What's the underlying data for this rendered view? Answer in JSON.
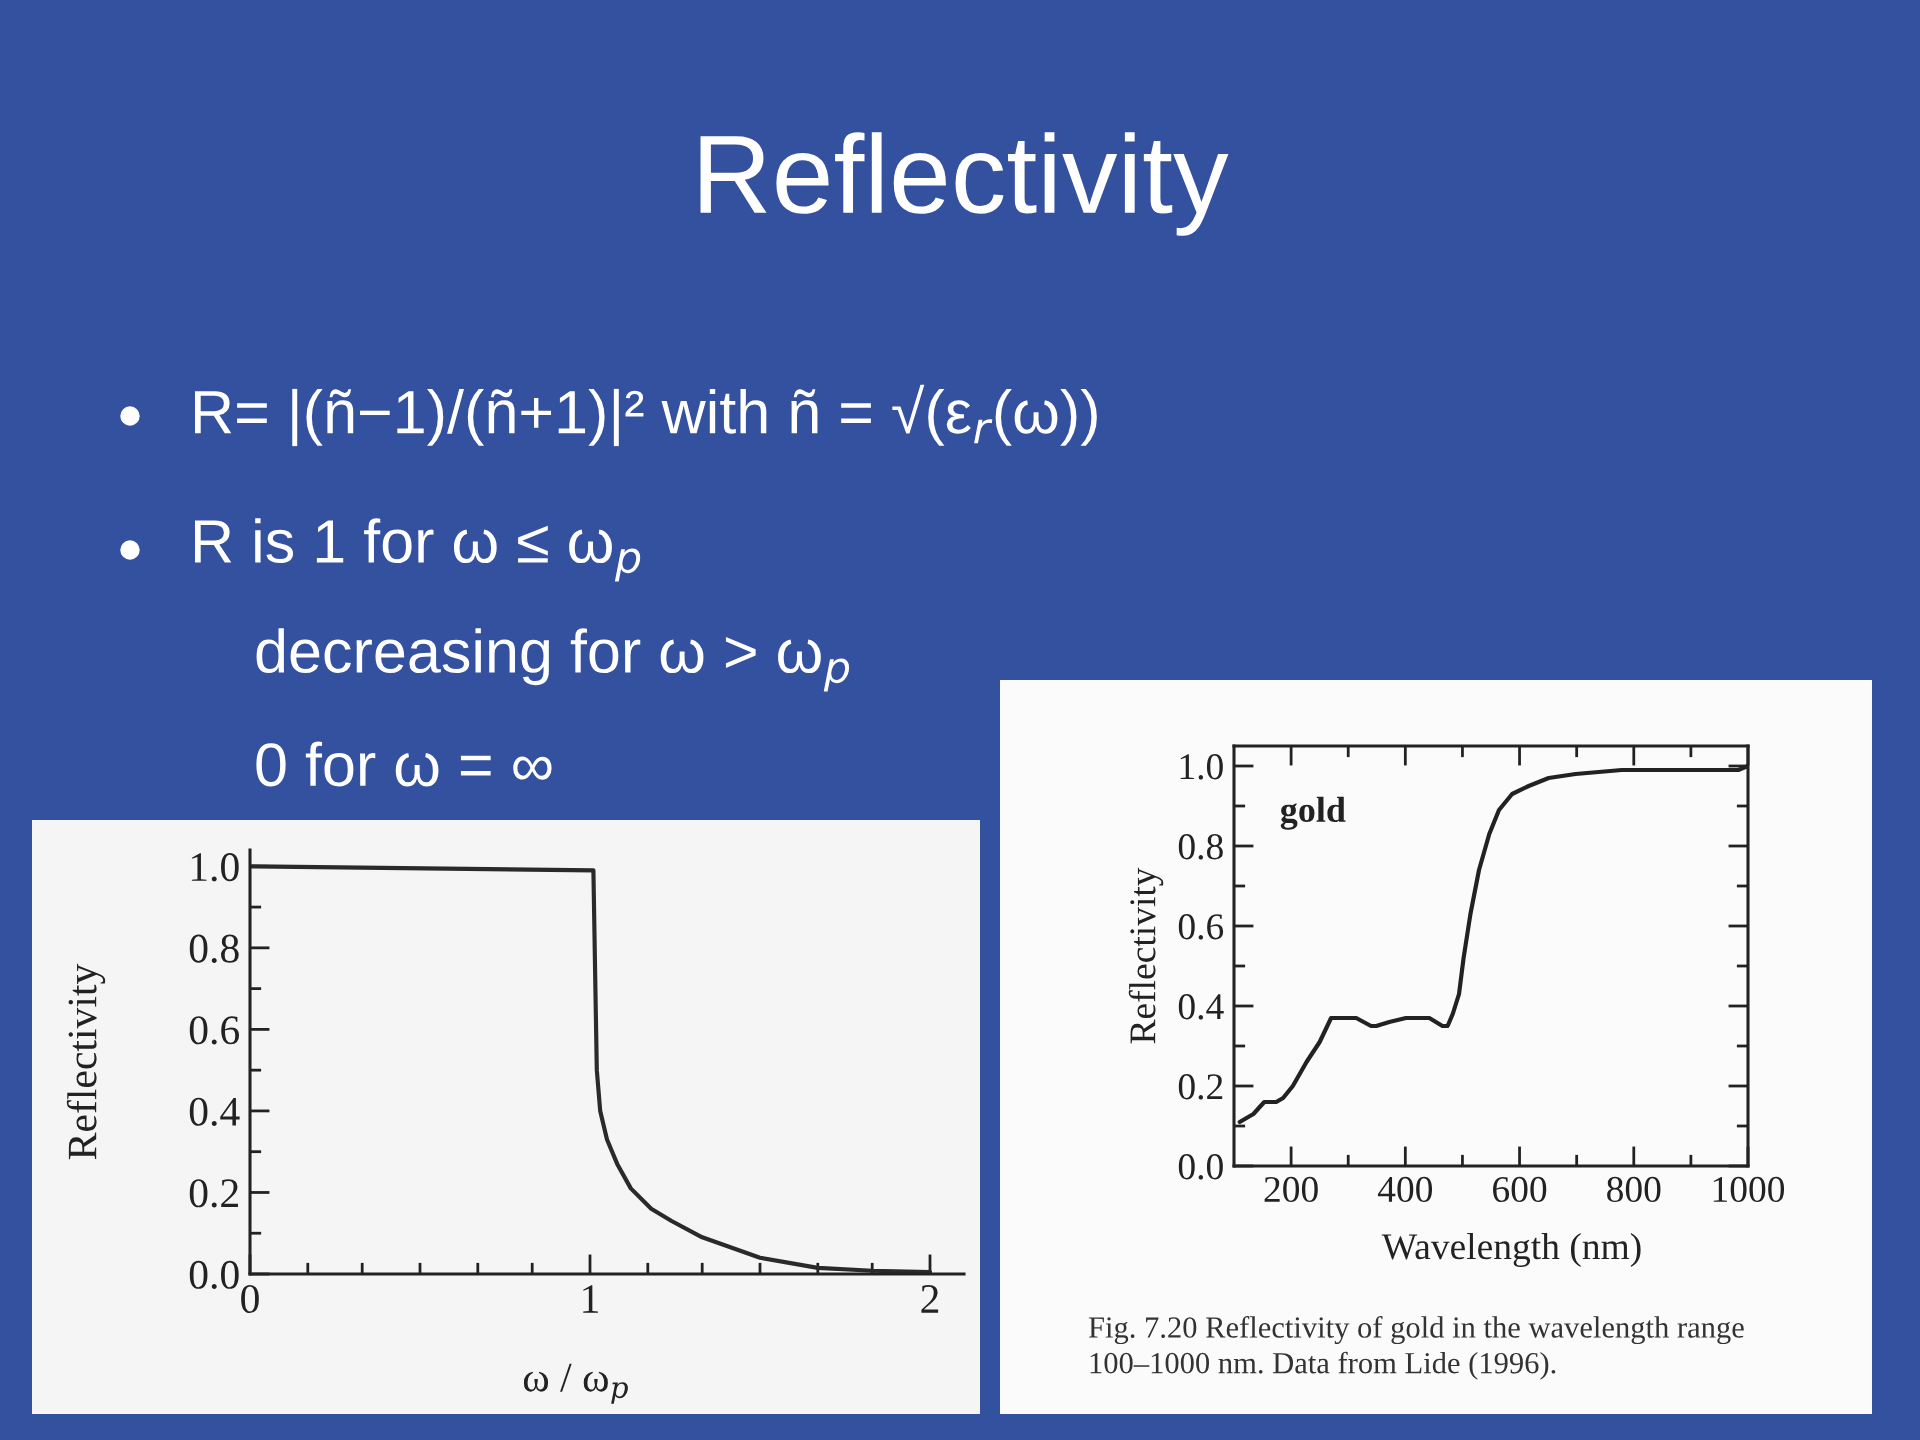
{
  "chart_data": [
    {
      "type": "other",
      "title": "Reflectivity",
      "annotations": [
        "R= |(ñ−1)/(ñ+1)|² with ñ = √(ε$_{r}$(ω))",
        "R is 1 for ω ≤ ω$_{p}$",
        "decreasing for ω > ω$_{p}$",
        "0 for ω = ∞"
      ]
    },
    {
      "type": "line",
      "xlabel": "ω / ω$_{p}$",
      "ylabel": "Reflectivity",
      "x": [
        0,
        1.01,
        1.02,
        1.03,
        1.05,
        1.08,
        1.12,
        1.18,
        1.24,
        1.33,
        1.5,
        1.67,
        1.83,
        2.0
      ],
      "series": [
        {
          "color": "#2a2a2a",
          "values": [
            1.0,
            0.99,
            0.5,
            0.4,
            0.33,
            0.27,
            0.21,
            0.16,
            0.13,
            0.09,
            0.04,
            0.015,
            0.008,
            0.005
          ]
        }
      ],
      "xlim": [
        0,
        2.1
      ],
      "ylim": [
        0,
        1.04
      ],
      "xticks": [
        0,
        {
          "value": 0.17,
          "label": null
        },
        {
          "value": 0.33,
          "label": null
        },
        {
          "value": 0.5,
          "label": null
        },
        {
          "value": 0.67,
          "label": null
        },
        {
          "value": 0.83,
          "label": null
        },
        1,
        {
          "value": 1.17,
          "label": null
        },
        {
          "value": 1.33,
          "label": null
        },
        {
          "value": 1.5,
          "label": null
        },
        {
          "value": 1.67,
          "label": null
        },
        {
          "value": 1.83,
          "label": null
        },
        2
      ],
      "yticks": [
        {
          "value": 0,
          "label": "0.0"
        },
        {
          "value": 0.1,
          "label": null
        },
        0.2,
        {
          "value": 0.3,
          "label": null
        },
        0.4,
        {
          "value": 0.5,
          "label": null
        },
        0.6,
        {
          "value": 0.7,
          "label": null
        },
        0.8,
        {
          "value": 0.9,
          "label": null
        },
        {
          "value": 1,
          "label": "1.0"
        }
      ]
    },
    {
      "type": "line",
      "xlabel": "Wavelength (nm)",
      "ylabel": "Reflectivity",
      "x": [
        110,
        134,
        153,
        174,
        186,
        203,
        227,
        250,
        270,
        281,
        314,
        340,
        349,
        372,
        401,
        442,
        465,
        474,
        483,
        494,
        502,
        514,
        529,
        547,
        564,
        587,
        616,
        651,
        698,
        779,
        895,
        983,
        1000
      ],
      "series": [
        {
          "name": "gold",
          "color": "#222222",
          "values": [
            0.11,
            0.13,
            0.16,
            0.16,
            0.17,
            0.2,
            0.26,
            0.31,
            0.37,
            0.37,
            0.37,
            0.35,
            0.35,
            0.36,
            0.37,
            0.37,
            0.35,
            0.35,
            0.38,
            0.43,
            0.52,
            0.63,
            0.74,
            0.83,
            0.89,
            0.93,
            0.95,
            0.97,
            0.98,
            0.99,
            0.99,
            0.99,
            1.0
          ]
        }
      ],
      "xlim": [
        100,
        1000
      ],
      "ylim": [
        0,
        1.05
      ],
      "xticks": [
        200,
        {
          "value": 300,
          "label": null
        },
        400,
        {
          "value": 500,
          "label": null
        },
        600,
        {
          "value": 700,
          "label": null
        },
        800,
        {
          "value": 900,
          "label": null
        },
        1000
      ],
      "yticks": [
        {
          "value": 0,
          "label": "0.0"
        },
        {
          "value": 0.1,
          "label": null
        },
        0.2,
        {
          "value": 0.3,
          "label": null
        },
        0.4,
        {
          "value": 0.5,
          "label": null
        },
        0.6,
        {
          "value": 0.7,
          "label": null
        },
        0.8,
        {
          "value": 0.9,
          "label": null
        },
        {
          "value": 1,
          "label": "1.0"
        }
      ],
      "annotations": [
        "Fig. 7.20 Reflectivity of gold in the wavelength range\n100–1000 nm. Data from Lide (1996)."
      ]
    }
  ]
}
